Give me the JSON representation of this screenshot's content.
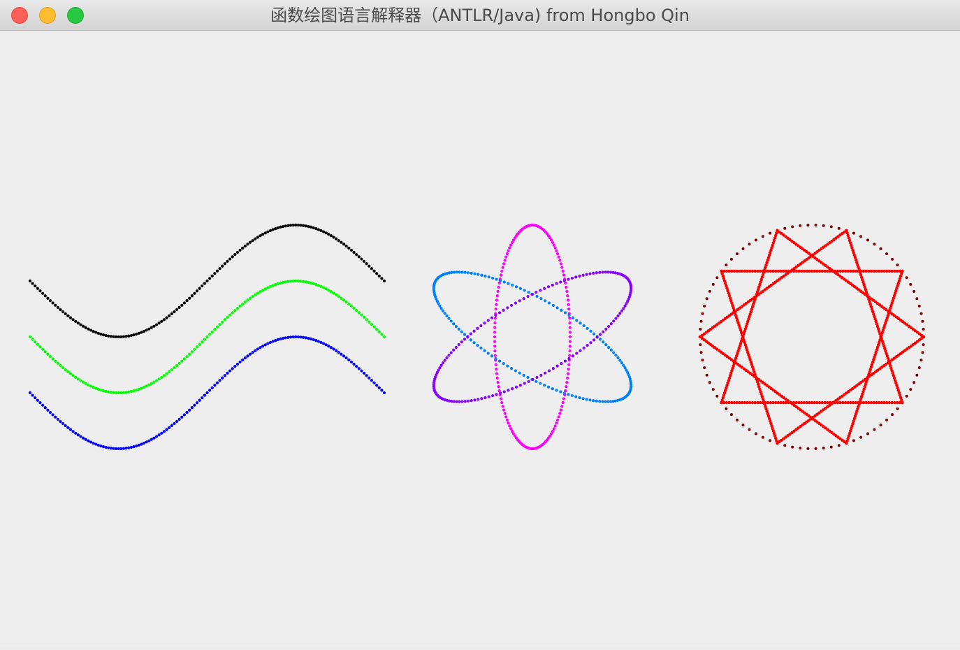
{
  "window": {
    "title": "函数绘图语言解释器（ANTLR/Java) from Hongbo Qin"
  },
  "controls": {
    "close_icon": "close-icon",
    "minimize_icon": "minimize-icon",
    "zoom_icon": "zoom-icon"
  },
  "colors": {
    "sine_top": "#000000",
    "sine_middle": "#00ff00",
    "sine_bottom": "#0000ff",
    "ellipse_vertical": "#ff00ff",
    "ellipse_rising": "#8a00ff",
    "ellipse_falling": "#0080ff",
    "circle_outline": "#800000",
    "star_pattern": "#ff0000"
  },
  "figures": [
    "sine-curves",
    "atom-ellipses",
    "star-in-circle"
  ]
}
